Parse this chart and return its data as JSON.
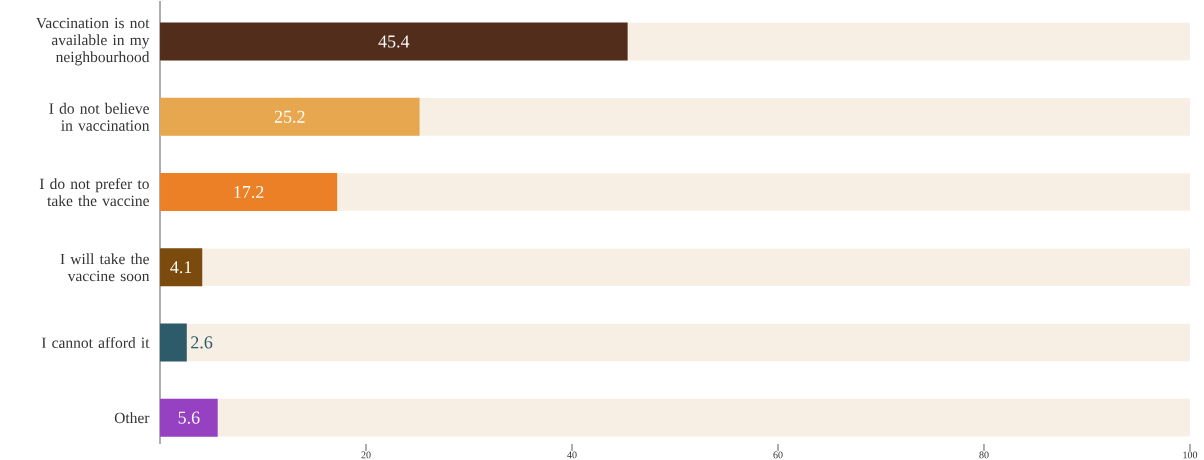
{
  "chart_data": {
    "type": "bar",
    "orientation": "horizontal",
    "categories": [
      "Vaccination is not available in my neighbourhood",
      "I do not believe in vaccination",
      "I do not prefer to take the vaccine",
      "I will take the vaccine soon",
      "I cannot afford it",
      "Other"
    ],
    "values": [
      45.4,
      25.2,
      17.2,
      4.1,
      2.6,
      5.6
    ],
    "colors": [
      "#532d1c",
      "#e6a74f",
      "#ec8026",
      "#7b4b0d",
      "#2d5b6a",
      "#9541c2"
    ],
    "xlim": [
      0,
      100
    ],
    "xticks": [
      20,
      40,
      60,
      80,
      100
    ],
    "data_labels": true
  }
}
